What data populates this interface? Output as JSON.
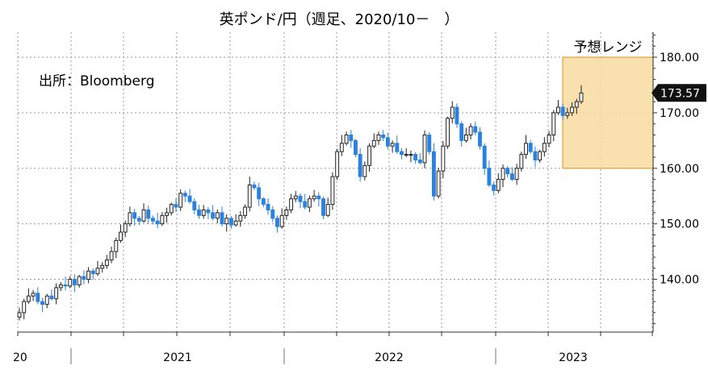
{
  "chart_data": {
    "type": "candlestick",
    "title": "英ポンド/円（週足、2020/10－　）",
    "source_note": "出所：Bloomberg",
    "forecast": {
      "label": "予想レンジ",
      "range": [
        160,
        180
      ]
    },
    "last_price_label": "173.57",
    "ylim": [
      130.5,
      184.5
    ],
    "y_ticks": [
      {
        "value": 140,
        "label": "140.00"
      },
      {
        "value": 150,
        "label": "150.00"
      },
      {
        "value": 160,
        "label": "160.00"
      },
      {
        "value": 170,
        "label": "170.00"
      },
      {
        "value": 180,
        "label": "180.00"
      }
    ],
    "x_ticks": [
      {
        "label": "20"
      },
      {
        "label": "2021"
      },
      {
        "label": "2022"
      },
      {
        "label": "2023"
      }
    ],
    "close_path": [
      134,
      136,
      137,
      137.5,
      136,
      135.5,
      137,
      136.5,
      138.5,
      139,
      138.8,
      140,
      139,
      140.5,
      140,
      141.5,
      141,
      142,
      142.5,
      143.5,
      145,
      147,
      148.5,
      150,
      152,
      151,
      150.5,
      152.5,
      151,
      150.5,
      150,
      151.5,
      152,
      153.5,
      153,
      155.5,
      155,
      154,
      152.5,
      151.5,
      152.5,
      152,
      151,
      152,
      150,
      151,
      149.8,
      150.5,
      151.5,
      153,
      157,
      156.5,
      154.5,
      153.5,
      152.5,
      151,
      149.5,
      151.5,
      152.5,
      154.5,
      155,
      154,
      153,
      154.5,
      155,
      154.5,
      151.5,
      153.5,
      158.5,
      163,
      164.5,
      166,
      165,
      162.5,
      158.5,
      160.5,
      164,
      165,
      166,
      165.5,
      164,
      164.5,
      163,
      162.5,
      162.5,
      162.5,
      161.5,
      161,
      166,
      163,
      155,
      159.5,
      164,
      169,
      171,
      168,
      165,
      166,
      167.5,
      166.5,
      164,
      160,
      157,
      156,
      158,
      160,
      159,
      158,
      160,
      162.5,
      164.5,
      163,
      161.5,
      163,
      164.5,
      166,
      170,
      171,
      169.5,
      170,
      171,
      172,
      173.57
    ],
    "high_noise": [
      0.9,
      0.5,
      1.4,
      0.6,
      1.1,
      0.7,
      0.4,
      1.2,
      0.8,
      0.5,
      1.5,
      0.6,
      0.9,
      0.3,
      1.1,
      0.7,
      0.5,
      1.3,
      0.6,
      0.9
    ],
    "low_noise": [
      0.6,
      1.2,
      0.4,
      0.9,
      0.5,
      1.4,
      0.7,
      0.3,
      1.0,
      0.6,
      0.8,
      0.4,
      1.3,
      0.5,
      0.9,
      0.7,
      1.1,
      0.4,
      0.8,
      0.6
    ]
  },
  "colors": {
    "up_fill": "#ffffff",
    "up_stroke": "#222222",
    "down_fill": "#2a82e0",
    "down_stroke": "#2a82e0",
    "grid": "#9a9a9a",
    "forecast_fill": "#f7dca1",
    "forecast_stroke": "#d9a13a",
    "tag_bg": "#111111",
    "tag_text": "#ffffff"
  }
}
